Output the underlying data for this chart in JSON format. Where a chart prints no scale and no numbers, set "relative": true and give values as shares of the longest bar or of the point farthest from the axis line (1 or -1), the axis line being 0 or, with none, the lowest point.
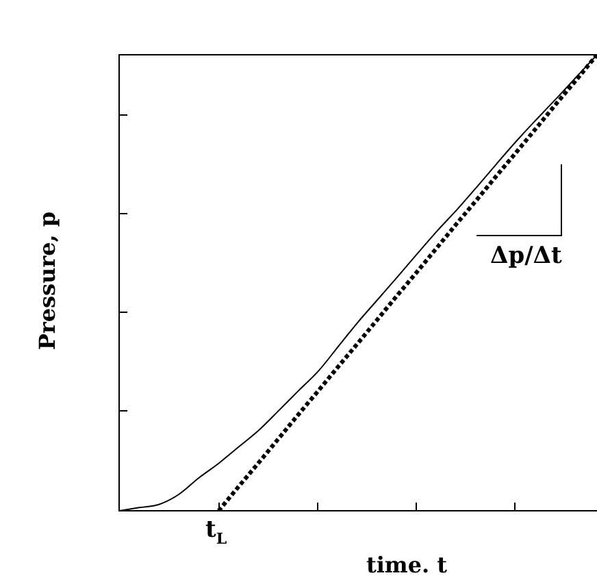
{
  "chart_data": {
    "type": "line",
    "relative": true,
    "xlabel": "time. t",
    "ylabel": "Pressure, p",
    "categories": [
      null,
      null,
      null,
      null,
      null,
      null,
      null,
      null,
      null,
      null,
      null,
      null,
      null,
      null,
      null,
      null,
      null,
      null,
      null,
      null,
      null,
      null,
      null,
      null,
      null
    ],
    "series": [
      {
        "color": "#000000",
        "line_style": "solid",
        "values": [
          0,
          0.007,
          0.014,
          0.036,
          0.072,
          0.104,
          0.14,
          0.176,
          0.219,
          0.263,
          0.306,
          0.36,
          0.414,
          0.464,
          0.514,
          0.565,
          0.615,
          0.662,
          0.712,
          0.763,
          0.813,
          0.86,
          0.906,
          0.953,
          1
        ]
      },
      {
        "color": "#000000",
        "line_style": "dotted",
        "values": [
          null,
          null,
          null,
          null,
          null,
          0,
          0.053,
          0.105,
          0.158,
          0.211,
          0.263,
          0.316,
          0.368,
          0.421,
          0.474,
          0.526,
          0.579,
          0.632,
          0.684,
          0.737,
          0.789,
          0.842,
          0.895,
          0.947,
          1
        ]
      }
    ],
    "annotations": [
      "t$_{L}$",
      "Δp/Δt"
    ],
    "marker": "none",
    "legend": false
  }
}
